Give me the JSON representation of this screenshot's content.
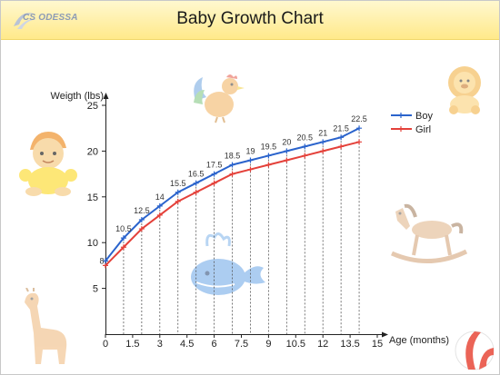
{
  "header": {
    "title": "Baby Growth Chart",
    "logo_text": "CS ODESSA"
  },
  "colors": {
    "boy": "#2a63cc",
    "girl": "#e4413a",
    "header_bg": "#fff3b0"
  },
  "decorations": [
    "rooster-icon",
    "lion-icon",
    "baby-icon",
    "rocking-horse-icon",
    "whale-icon",
    "giraffe-icon",
    "beach-ball-icon"
  ],
  "chart_data": {
    "type": "line",
    "title": "",
    "xlabel": "Age (months)",
    "ylabel": "Weigth (lbs)",
    "xlim": [
      0,
      15
    ],
    "ylim": [
      0,
      25
    ],
    "x_ticks": [
      "0",
      "1.5",
      "3",
      "4.5",
      "6",
      "7.5",
      "9",
      "10.5",
      "12",
      "13.5",
      "15"
    ],
    "y_ticks": [
      "5",
      "10",
      "15",
      "20",
      "25"
    ],
    "grid": "vertical dotted drop lines",
    "legend_position": "top-right",
    "series": [
      {
        "name": "Boy",
        "color": "#2a63cc",
        "x": [
          0,
          1,
          2,
          3,
          4,
          5,
          6,
          7,
          8,
          9,
          10,
          11,
          12,
          13,
          14
        ],
        "values": [
          8,
          10.5,
          12.5,
          14,
          15.5,
          16.5,
          17.5,
          18.5,
          19,
          19.5,
          20,
          20.5,
          21,
          21.5,
          22.5
        ],
        "labels": [
          "8",
          "10.5",
          "12.5",
          "14",
          "15.5",
          "16.5",
          "17.5",
          "18.5",
          "19",
          "19.5",
          "20",
          "20.5",
          "21",
          "21.5",
          "22.5"
        ]
      },
      {
        "name": "Girl",
        "color": "#e4413a",
        "x": [
          0,
          1,
          2,
          3,
          4,
          5,
          6,
          7,
          8,
          9,
          10,
          11,
          12,
          13,
          14
        ],
        "values": [
          7.5,
          9.5,
          11.5,
          13,
          14.5,
          15.5,
          16.5,
          17.5,
          18,
          18.5,
          19,
          19.5,
          20,
          20.5,
          21
        ]
      }
    ]
  }
}
